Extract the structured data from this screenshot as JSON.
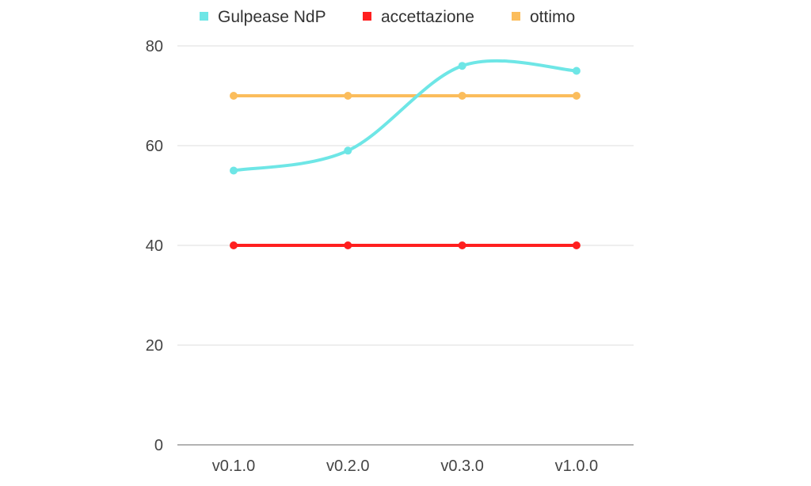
{
  "chart_data": {
    "type": "line",
    "categories": [
      "v0.1.0",
      "v0.2.0",
      "v0.3.0",
      "v1.0.0"
    ],
    "series": [
      {
        "name": "Gulpease NdP",
        "values": [
          55,
          59,
          76,
          75
        ],
        "color": "#6ee6e6",
        "smooth": true
      },
      {
        "name": "accettazione",
        "values": [
          40,
          40,
          40,
          40
        ],
        "color": "#ff1f1f",
        "smooth": false
      },
      {
        "name": "ottimo",
        "values": [
          70,
          70,
          70,
          70
        ],
        "color": "#fbbd5c",
        "smooth": false
      }
    ],
    "yticks": [
      0,
      20,
      40,
      60,
      80
    ],
    "ylim": [
      0,
      80
    ],
    "grid": true,
    "legend_position": "top"
  }
}
